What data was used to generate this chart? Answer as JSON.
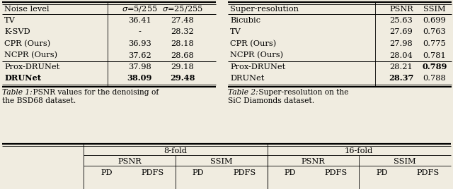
{
  "table1_caption_bold": "Table 1:",
  "table1_caption_rest": "  PSNR values for the denoising of\nthe BSD68 dataset.",
  "table2_caption_bold": "Table 2:",
  "table2_caption_rest": "  Super-resolution on the\nSiC Diamonds dataset.",
  "table1_headers": [
    "Noise level",
    "σ=5/255",
    "σ=25/255"
  ],
  "table1_rows": [
    [
      "TV",
      "36.41",
      "27.48"
    ],
    [
      "K-SVD",
      "-",
      "28.32"
    ],
    [
      "CPR (Ours)",
      "36.93",
      "28.18"
    ],
    [
      "NCPR (Ours)",
      "37.62",
      "28.68"
    ],
    [
      "Prox-DRUNet",
      "37.98",
      "29.18"
    ],
    [
      "DRUNet",
      "38.09",
      "29.48"
    ]
  ],
  "table1_bold_rows": [
    5
  ],
  "table1_separator_after": [
    3
  ],
  "table2_headers": [
    "Super-resolution",
    "PSNR",
    "SSIM"
  ],
  "table2_rows": [
    [
      "Bicubic",
      "25.63",
      "0.699"
    ],
    [
      "TV",
      "27.69",
      "0.763"
    ],
    [
      "CPR (Ours)",
      "27.98",
      "0.775"
    ],
    [
      "NCPR (Ours)",
      "28.04",
      "0.781"
    ],
    [
      "Prox-DRUNet",
      "28.21",
      "0.789"
    ],
    [
      "DRUNet",
      "28.37",
      "0.788"
    ]
  ],
  "table2_bold_cells": [
    [
      4,
      2
    ],
    [
      5,
      1
    ]
  ],
  "table2_separator_after": [
    3
  ],
  "table3_fold_headers": [
    "8-fold",
    "16-fold"
  ],
  "table3_metric_headers": [
    "PSNR",
    "SSIM",
    "PSNR",
    "SSIM"
  ],
  "table3_col_headers": [
    "PD",
    "PDFS",
    "PD",
    "PDFS",
    "PD",
    "PDFS",
    "PD",
    "PDFS"
  ],
  "bg_color": "#f0ece0",
  "line_color": "#000000",
  "font_family": "serif"
}
